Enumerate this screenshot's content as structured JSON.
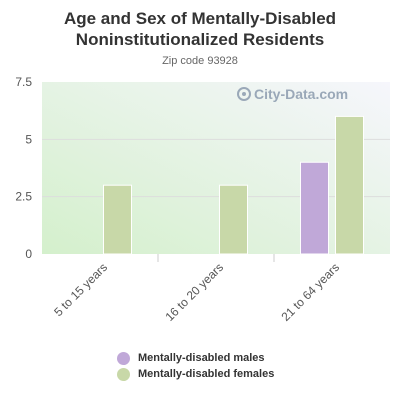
{
  "title": "Age and Sex of Mentally-Disabled Noninstitutionalized Residents",
  "subtitle": "Zip code 93928",
  "watermark": "City-Data.com",
  "colors": {
    "males": "#c0a8d8",
    "females": "#c8d8a8",
    "grid": "#dddddd",
    "axis_text": "#555555"
  },
  "chart_data": {
    "type": "bar",
    "categories": [
      "5 to 15 years",
      "16 to 20 years",
      "21 to 64 years"
    ],
    "series": [
      {
        "name": "Mentally-disabled males",
        "values": [
          0,
          0,
          4
        ]
      },
      {
        "name": "Mentally-disabled females",
        "values": [
          3,
          3,
          6
        ]
      }
    ],
    "yticks": [
      "0",
      "2.5",
      "5",
      "7.5"
    ],
    "ylim": [
      0,
      7.5
    ],
    "legend_position": "bottom",
    "grid": true
  }
}
